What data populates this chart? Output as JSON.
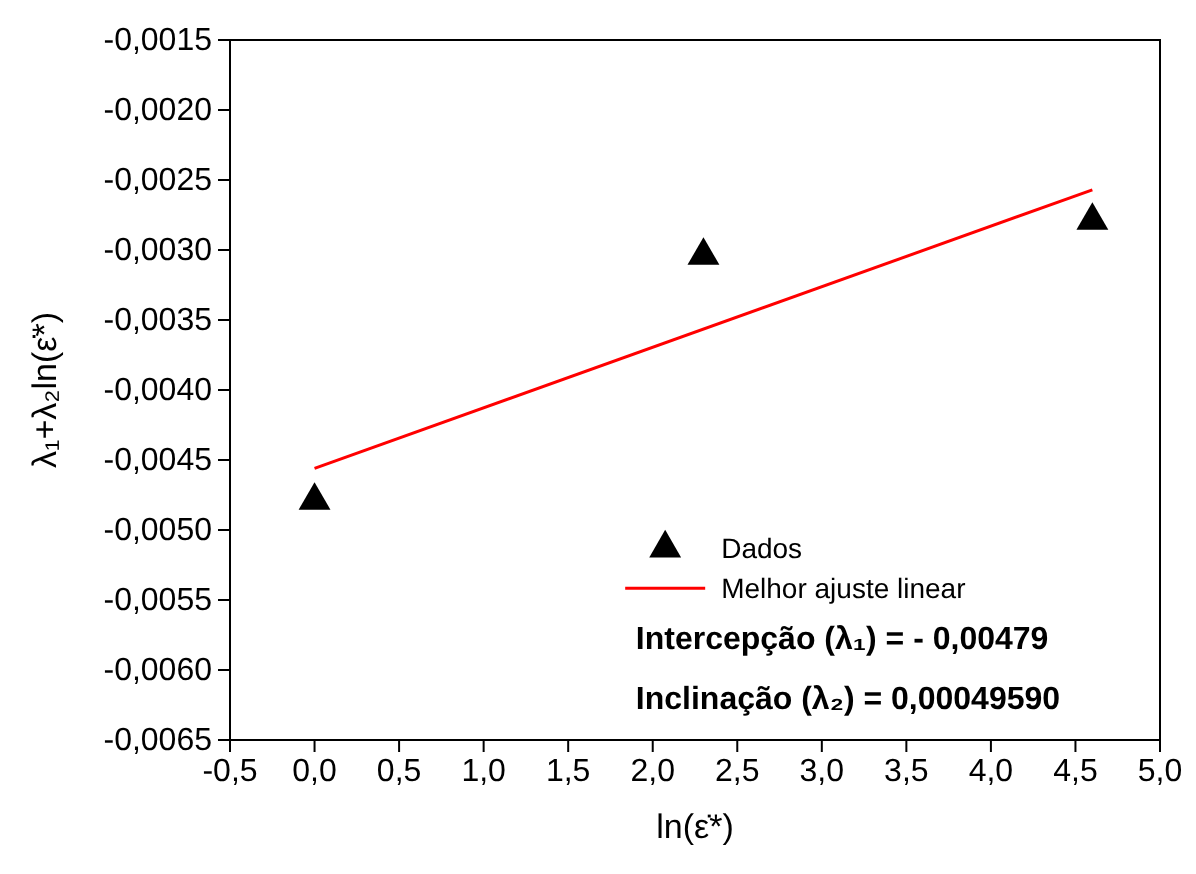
{
  "chart_data": {
    "type": "scatter",
    "xlabel": "ln(ε̇*)",
    "ylabel": "λ₁+λ₂ln(ε̇*)",
    "xlim": [
      -0.5,
      5.0
    ],
    "xticks": [
      {
        "value": -0.5,
        "label": "-0,5"
      },
      {
        "value": 0,
        "label": "0,0"
      },
      {
        "value": 0.5,
        "label": "0,5"
      },
      {
        "value": 1,
        "label": "1,0"
      },
      {
        "value": 1.5,
        "label": "1,5"
      },
      {
        "value": 2,
        "label": "2,0"
      },
      {
        "value": 2.5,
        "label": "2,5"
      },
      {
        "value": 3,
        "label": "3,0"
      },
      {
        "value": 3.5,
        "label": "3,5"
      },
      {
        "value": 4,
        "label": "4,0"
      },
      {
        "value": 4.5,
        "label": "4,5"
      },
      {
        "value": 5,
        "label": "5,0"
      }
    ],
    "ylim": [
      -0.0065,
      -0.0015
    ],
    "yticks": [
      {
        "value": -0.0065,
        "label": "-0,0065"
      },
      {
        "value": -0.006,
        "label": "-0,0060"
      },
      {
        "value": -0.0055,
        "label": "-0,0055"
      },
      {
        "value": -0.005,
        "label": "-0,0050"
      },
      {
        "value": -0.0045,
        "label": "-0,0045"
      },
      {
        "value": -0.004,
        "label": "-0,0040"
      },
      {
        "value": -0.0035,
        "label": "-0,0035"
      },
      {
        "value": -0.003,
        "label": "-0,0030"
      },
      {
        "value": -0.0025,
        "label": "-0,0025"
      },
      {
        "value": -0.002,
        "label": "-0,0020"
      },
      {
        "value": -0.0015,
        "label": "-0,0015"
      }
    ],
    "legend": "bottom right",
    "grid": false,
    "series": [
      {
        "name": "Dados",
        "marker": "triangle",
        "color": "#000000",
        "x": [
          0,
          2.3,
          4.6
        ],
        "values": [
          -0.00479,
          -0.00304,
          -0.00279
        ]
      },
      {
        "name": "Melhor ajuste linear",
        "type": "line",
        "color": "#ff0000",
        "x": [
          0,
          4.6
        ],
        "values": [
          -0.00456,
          -0.00257
        ]
      }
    ],
    "annotations": [
      "Intercepção (λ₁) = - 0,00479",
      "Inclinação (λ₂) = 0,00049590"
    ]
  }
}
